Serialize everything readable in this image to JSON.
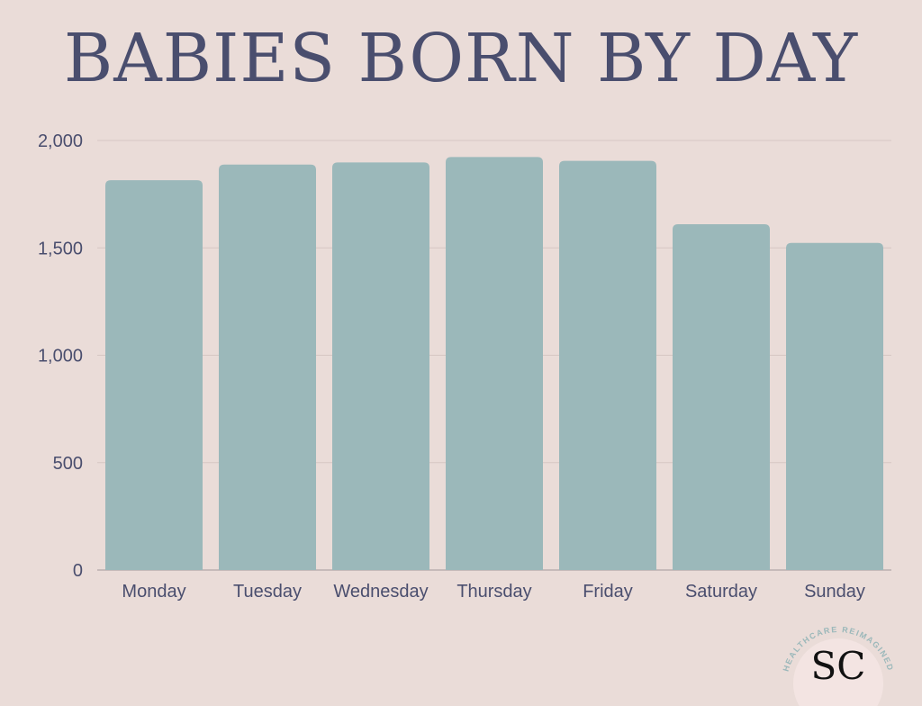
{
  "chart_data": {
    "type": "bar",
    "title": "BABIES BORN BY DAY",
    "categories": [
      "Monday",
      "Tuesday",
      "Wednesday",
      "Thursday",
      "Friday",
      "Saturday",
      "Sunday"
    ],
    "values": [
      1815,
      1888,
      1898,
      1923,
      1905,
      1610,
      1523
    ],
    "ylim": [
      0,
      2000
    ],
    "yticks": [
      0,
      500,
      1000,
      1500,
      2000
    ],
    "ytick_labels": [
      "0",
      "500",
      "1,000",
      "1,500",
      "2,000"
    ],
    "grid": true,
    "bar_color": "#9BB8BA"
  },
  "logo": {
    "initials": "SC",
    "ring_text": "HEALTHCARE REIMAGINED"
  },
  "colors": {
    "background": "#EADCD8",
    "text": "#4A4E6E",
    "grid": "#D6C6C3",
    "bar": "#9BB8BA"
  }
}
